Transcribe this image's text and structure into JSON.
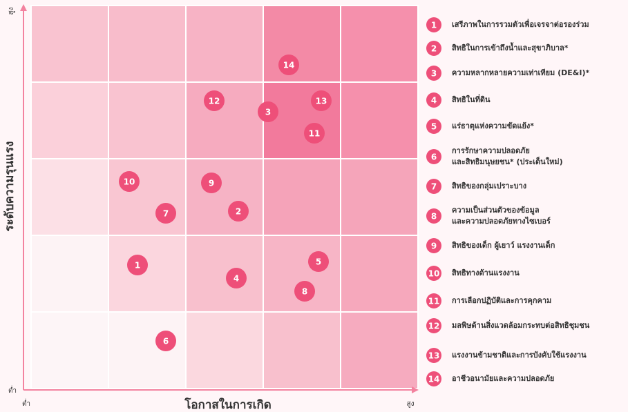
{
  "axes": {
    "y_label": "ระดับความรุนแรง",
    "y_high": "สูง",
    "y_low": "ต่ำ",
    "x_label": "โอกาสในการเกิด",
    "x_low": "ต่ำ",
    "x_high": "สูง"
  },
  "legend": [
    {
      "number": "1",
      "lines": [
        "เสรีภาพในการรวมตัวเพื่อเจรจาต่อรองร่วม"
      ]
    },
    {
      "number": "2",
      "lines": [
        "สิทธิในการเข้าถึงน้ำและสุขาภิบาล*"
      ]
    },
    {
      "number": "3",
      "lines": [
        "ความหลากหลายความเท่าเทียม (DE&I)*"
      ]
    },
    {
      "number": "4",
      "lines": [
        "สิทธิในที่ดิน"
      ]
    },
    {
      "number": "5",
      "lines": [
        "แร่ธาตุแห่งความขัดแย้ง*"
      ]
    },
    {
      "number": "6",
      "lines": [
        "การรักษาความปลอดภัย",
        "และสิทธิมนุษยชน* (ประเด็นใหม่)"
      ]
    },
    {
      "number": "7",
      "lines": [
        "สิทธิของกลุ่มเปราะบาง"
      ]
    },
    {
      "number": "8",
      "lines": [
        "ความเป็นส่วนตัวของข้อมูล",
        "และความปลอดภัยทางไซเบอร์"
      ]
    },
    {
      "number": "9",
      "lines": [
        "สิทธิของเด็ก ผู้เยาว์ แรงงานเด็ก"
      ]
    },
    {
      "number": "10",
      "lines": [
        "สิทธิทางด้านแรงงาน"
      ]
    },
    {
      "number": "11",
      "lines": [
        "การเลือกปฏิบัติและการคุกคาม"
      ]
    },
    {
      "number": "12",
      "lines": [
        "มลพิษด้านสิ่งแวดล้อมกระทบต่อสิทธิชุมชน"
      ]
    },
    {
      "number": "13",
      "lines": [
        "แรงงานข้ามชาติและการบังคับใช้แรงงาน"
      ]
    },
    {
      "number": "14",
      "lines": [
        "อาชีวอนามัยและความปลอดภัย"
      ]
    }
  ]
}
